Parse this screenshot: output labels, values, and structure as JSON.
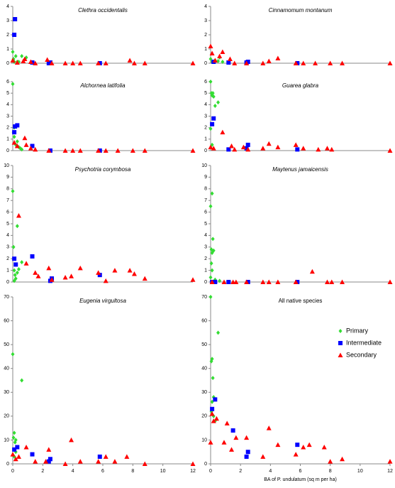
{
  "chart_data": [
    {
      "type": "scatter",
      "title": "Clethra occidentalis",
      "xlim": [
        0,
        12
      ],
      "ylim": [
        0,
        4
      ],
      "yticks": [
        0,
        1,
        2,
        3,
        4
      ],
      "series": [
        {
          "color": "#33dd33",
          "marker": "diamond",
          "x": [
            0,
            0.05,
            0.1,
            0.2,
            0.3,
            0.4,
            0.6,
            0.9
          ],
          "values": [
            0.8,
            0.3,
            0.1,
            0.5,
            0.1,
            0.1,
            0.5,
            0.4
          ]
        },
        {
          "color": "#0000ff",
          "marker": "square",
          "x": [
            0.1,
            0.15,
            1.3,
            2.4,
            2.5,
            5.8
          ],
          "values": [
            2.0,
            3.1,
            0.05,
            0,
            0.05,
            0
          ]
        },
        {
          "color": "#ff0000",
          "marker": "triangle",
          "x": [
            0,
            0.3,
            0.7,
            0.8,
            1.2,
            1.5,
            2.3,
            2.6,
            3.5,
            4,
            4.5,
            5.7,
            6.2,
            7.8,
            8.1,
            8.8,
            12
          ],
          "values": [
            0.2,
            0.05,
            0.15,
            0.3,
            0.1,
            0,
            0.25,
            0,
            0,
            0,
            0,
            0,
            0,
            0.2,
            0,
            0,
            0
          ]
        }
      ]
    },
    {
      "type": "scatter",
      "title": "Cinnamomum montanum",
      "xlim": [
        0,
        12
      ],
      "ylim": [
        0,
        4
      ],
      "yticks": [
        0,
        1,
        2,
        3,
        4
      ],
      "series": [
        {
          "color": "#33dd33",
          "marker": "diamond",
          "x": [
            0,
            0.1,
            0.3,
            0.5,
            0.6,
            0.8
          ],
          "values": [
            0.3,
            0.1,
            0.2,
            0.15,
            0.4,
            0.1
          ]
        },
        {
          "color": "#0000ff",
          "marker": "square",
          "x": [
            0.2,
            1.2,
            2.4,
            2.5,
            5.8
          ],
          "values": [
            0.1,
            0.05,
            0.05,
            0.1,
            0
          ]
        },
        {
          "color": "#ff0000",
          "marker": "triangle",
          "x": [
            0,
            0.1,
            0.3,
            0.6,
            0.8,
            1.3,
            1.6,
            2.4,
            3.5,
            3.9,
            4.5,
            5.7,
            6.2,
            7,
            8,
            8.8,
            12
          ],
          "values": [
            1.2,
            0.7,
            0.2,
            0.5,
            0.8,
            0.3,
            0,
            0,
            0,
            0.15,
            0.35,
            0,
            0,
            0,
            0,
            0,
            0
          ]
        }
      ]
    },
    {
      "type": "scatter",
      "title": "Alchornea latifolia",
      "xlim": [
        0,
        12
      ],
      "ylim": [
        0,
        6
      ],
      "yticks": [
        0,
        1,
        2,
        3,
        4,
        5,
        6
      ],
      "series": [
        {
          "color": "#33dd33",
          "marker": "diamond",
          "x": [
            0,
            0.05,
            0.1,
            0.1,
            0.2,
            0.3,
            0.4,
            0.5,
            0.6
          ],
          "values": [
            5.8,
            1.6,
            1.2,
            2.0,
            0.5,
            0.8,
            0.3,
            0.2,
            0.1
          ]
        },
        {
          "color": "#0000ff",
          "marker": "square",
          "x": [
            0.1,
            0.15,
            0.3,
            1.3,
            2.5,
            5.8
          ],
          "values": [
            1.6,
            2.1,
            2.2,
            0.4,
            0,
            0
          ]
        },
        {
          "color": "#ff0000",
          "marker": "triangle",
          "x": [
            0.1,
            0.3,
            0.8,
            0.9,
            1.2,
            1.5,
            2.4,
            3.5,
            4,
            4.5,
            5.7,
            6.2,
            7,
            8,
            8.8,
            12
          ],
          "values": [
            0.7,
            0.4,
            1.1,
            0.5,
            0.2,
            0.1,
            0,
            0,
            0,
            0,
            0,
            0,
            0,
            0,
            0,
            0
          ]
        }
      ]
    },
    {
      "type": "scatter",
      "title": "Guarea glabra",
      "xlim": [
        0,
        12
      ],
      "ylim": [
        0,
        6
      ],
      "yticks": [
        0,
        1,
        2,
        3,
        4,
        5,
        6
      ],
      "series": [
        {
          "color": "#33dd33",
          "marker": "diamond",
          "x": [
            0,
            0.05,
            0.1,
            0.15,
            0.2,
            0.3,
            0.5,
            0,
            0.1
          ],
          "values": [
            6,
            5.0,
            4.8,
            5.0,
            4.7,
            3.9,
            4.2,
            1.9,
            0.5
          ]
        },
        {
          "color": "#0000ff",
          "marker": "square",
          "x": [
            0.1,
            0.2,
            1.2,
            2.4,
            2.5,
            5.8
          ],
          "values": [
            2.3,
            2.8,
            0.1,
            0.2,
            0.5,
            0.1
          ]
        },
        {
          "color": "#ff0000",
          "marker": "triangle",
          "x": [
            0,
            0.2,
            0.8,
            1.4,
            1.6,
            2.2,
            2.5,
            3.5,
            3.9,
            4.5,
            5.7,
            6.2,
            7.2,
            7.8,
            8.1,
            12
          ],
          "values": [
            0.3,
            0.2,
            1.6,
            0.4,
            0.1,
            0.3,
            0.1,
            0.2,
            0.6,
            0.3,
            0.5,
            0.2,
            0.1,
            0.2,
            0.1,
            0
          ]
        }
      ]
    },
    {
      "type": "scatter",
      "title": "Psychotria corymbosa",
      "xlim": [
        0,
        12
      ],
      "ylim": [
        0,
        10
      ],
      "yticks": [
        0,
        1,
        2,
        3,
        4,
        5,
        6,
        7,
        8,
        9,
        10
      ],
      "series": [
        {
          "color": "#33dd33",
          "marker": "diamond",
          "x": [
            0,
            0.05,
            0.1,
            0.15,
            0.2,
            0.3,
            0.4,
            0.6,
            0.1,
            0.3
          ],
          "values": [
            7.8,
            3.0,
            1.0,
            0.6,
            0.3,
            4.8,
            1.1,
            1.7,
            0.1,
            0.8
          ]
        },
        {
          "color": "#0000ff",
          "marker": "square",
          "x": [
            0.1,
            0.2,
            1.3,
            2.5,
            2.6,
            5.8
          ],
          "values": [
            2.0,
            1.5,
            2.2,
            0.1,
            0.3,
            0.6
          ]
        },
        {
          "color": "#ff0000",
          "marker": "triangle",
          "x": [
            0.4,
            0.9,
            1.5,
            1.7,
            2.4,
            2.6,
            3.5,
            3.9,
            4.5,
            5.7,
            6.2,
            6.8,
            7.8,
            8.1,
            8.8,
            12
          ],
          "values": [
            5.7,
            1.6,
            0.8,
            0.5,
            1.2,
            0.2,
            0.4,
            0.5,
            1.2,
            0.8,
            0.1,
            1.0,
            1.0,
            0.7,
            0.3,
            0.2
          ]
        }
      ]
    },
    {
      "type": "scatter",
      "title": "Maytenus jamaicensis",
      "xlim": [
        0,
        12
      ],
      "ylim": [
        0,
        10
      ],
      "yticks": [
        0,
        1,
        2,
        3,
        4,
        5,
        6,
        7,
        8,
        9,
        10
      ],
      "series": [
        {
          "color": "#33dd33",
          "marker": "diamond",
          "x": [
            0,
            0.1,
            0.15,
            0.05,
            0.1,
            0.2,
            0.05,
            0.1,
            0.3,
            0.6,
            0
          ],
          "values": [
            6.5,
            7.6,
            3.7,
            2.8,
            2.5,
            2.7,
            1.6,
            1.0,
            0.2,
            0.1,
            0.4
          ]
        },
        {
          "color": "#0000ff",
          "marker": "square",
          "x": [
            0.1,
            0.3,
            1.2,
            2.5,
            5.8
          ],
          "values": [
            0,
            0,
            0,
            0,
            0
          ]
        },
        {
          "color": "#ff0000",
          "marker": "triangle",
          "x": [
            0.1,
            0.9,
            1.5,
            1.7,
            2.4,
            3.5,
            3.9,
            4.5,
            5.7,
            6.8,
            7.8,
            8.1,
            8.8,
            12
          ],
          "values": [
            0,
            0,
            0,
            0,
            0,
            0,
            0,
            0,
            0,
            0.9,
            0,
            0,
            0,
            0
          ]
        }
      ]
    },
    {
      "type": "scatter",
      "title": "Eugenia virgultosa",
      "xlim": [
        0,
        12
      ],
      "ylim": [
        0,
        70
      ],
      "yticks": [
        0,
        10,
        20,
        30,
        40,
        50,
        60,
        70
      ],
      "xticks": [
        0,
        2,
        4,
        6,
        8,
        10,
        12
      ],
      "series": [
        {
          "color": "#33dd33",
          "marker": "diamond",
          "x": [
            0,
            0.1,
            0.05,
            0.15,
            0.2,
            0.3,
            0.6,
            0.1,
            0.2
          ],
          "values": [
            46,
            13,
            11,
            9,
            10,
            7,
            35,
            3,
            5
          ]
        },
        {
          "color": "#0000ff",
          "marker": "square",
          "x": [
            0.1,
            0.3,
            1.3,
            2.4,
            2.5,
            5.8
          ],
          "values": [
            6,
            7,
            4,
            1,
            2,
            3
          ]
        },
        {
          "color": "#ff0000",
          "marker": "triangle",
          "x": [
            0,
            0.2,
            0.4,
            0.9,
            1.5,
            2.2,
            2.4,
            3.5,
            3.9,
            4.5,
            5.7,
            6.2,
            6.8,
            7.6,
            8.8,
            12
          ],
          "values": [
            4,
            2,
            3,
            7,
            1,
            1,
            6,
            0,
            10,
            1,
            1,
            3,
            1,
            3,
            0,
            0
          ]
        }
      ]
    },
    {
      "type": "scatter",
      "title": "All native species",
      "xlim": [
        0,
        12
      ],
      "ylim": [
        0,
        70
      ],
      "yticks": [
        0,
        10,
        20,
        30,
        40,
        50,
        60,
        70
      ],
      "xticks": [
        0,
        2,
        4,
        6,
        8,
        10,
        12
      ],
      "xlabel": "BA of P. undulatum (sq m per ha)",
      "legend": "right",
      "series": [
        {
          "name": "Primary",
          "color": "#33dd33",
          "marker": "diamond",
          "x": [
            0,
            0.05,
            0.1,
            0.15,
            0.2,
            0.5,
            0.1,
            0.05,
            0.2,
            0.3
          ],
          "values": [
            70,
            43,
            44,
            36,
            28,
            55,
            26,
            22,
            20,
            18
          ]
        },
        {
          "name": "Intermediate",
          "color": "#0000ff",
          "marker": "square",
          "x": [
            0.1,
            0.3,
            1.5,
            2.4,
            2.5,
            5.8
          ],
          "values": [
            23,
            27,
            14,
            3,
            5,
            8
          ]
        },
        {
          "name": "Secondary",
          "color": "#ff0000",
          "marker": "triangle",
          "x": [
            0,
            0.1,
            0.2,
            0.4,
            1.1,
            0.9,
            1.4,
            1.7,
            2.4,
            3.5,
            3.9,
            4.5,
            5.7,
            6.2,
            6.6,
            7.6,
            8,
            8.8,
            12
          ],
          "values": [
            9,
            21,
            18,
            19,
            17,
            9,
            6,
            11,
            11,
            3,
            15,
            8,
            4,
            7,
            8,
            7,
            1,
            2,
            1
          ]
        }
      ]
    }
  ]
}
